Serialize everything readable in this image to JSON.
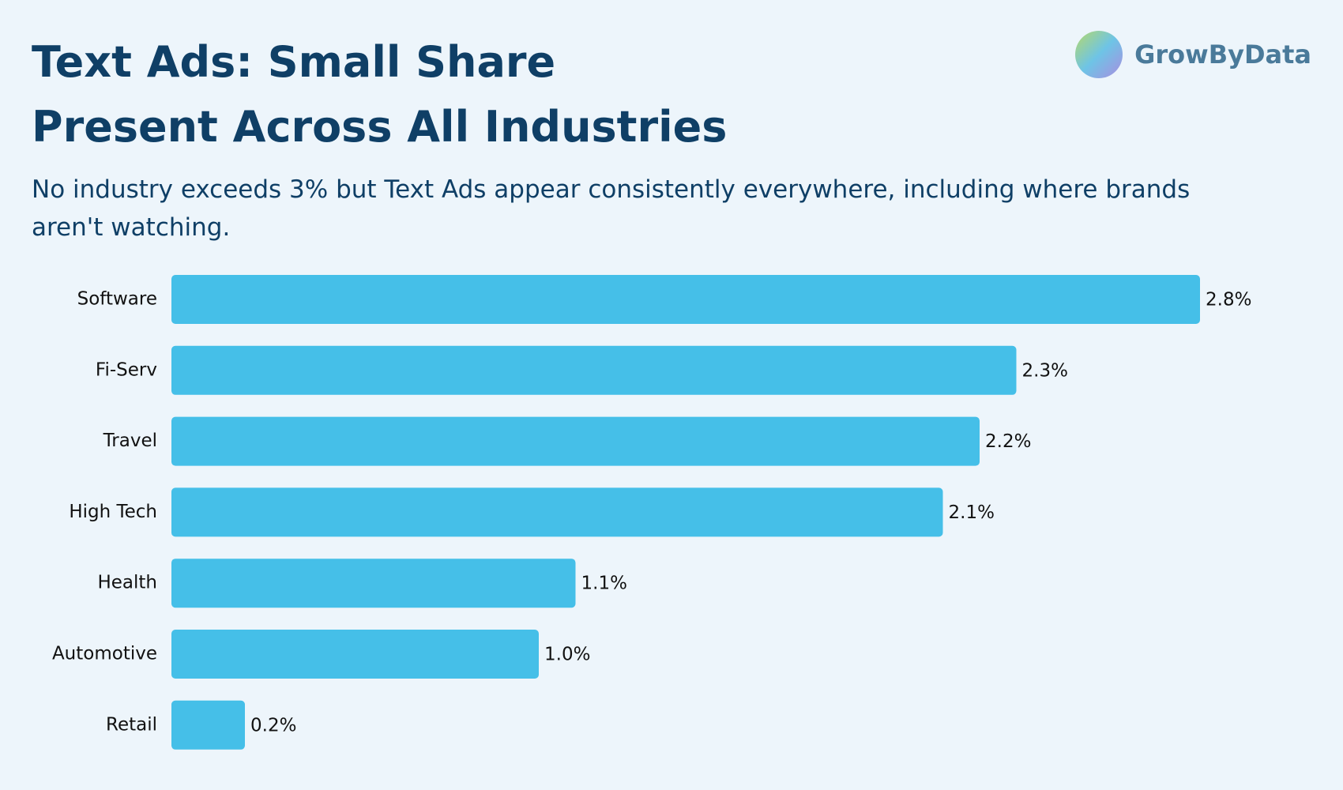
{
  "logo": "GrowByData",
  "chart_data": {
    "type": "bar",
    "orientation": "horizontal",
    "title": [
      "Text Ads: Small Share",
      "Present Across All Industries"
    ],
    "subtitle": "No industry exceeds 3% but Text Ads appear consistently everywhere, including where brands aren't watching.",
    "categories": [
      "Software",
      "Fi-Serv",
      "Travel",
      "High Tech",
      "Health",
      "Automotive",
      "Retail"
    ],
    "values": [
      2.8,
      2.3,
      2.2,
      2.1,
      1.1,
      1.0,
      0.2
    ],
    "value_labels": [
      "2.8%",
      "2.3%",
      "2.2%",
      "2.1%",
      "1.1%",
      "1.0%",
      "0.2%"
    ],
    "color": "#45bfe8"
  }
}
